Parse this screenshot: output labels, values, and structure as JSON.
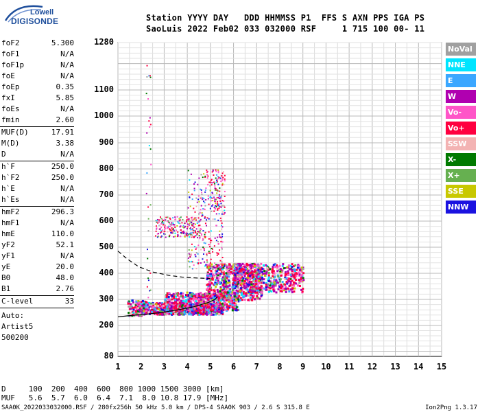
{
  "logo": {
    "line1": "Lowell",
    "line2": "DIGISONDE"
  },
  "header": {
    "line1": "Station YYYY DAY   DDD HHMMSS P1  FFS S AXN PPS IGA PS",
    "line2": "SaoLuis 2022 Feb02 033 032000 RSF     1 715 100 00- 11"
  },
  "params_group1": [
    {
      "label": "foF2",
      "value": "5.300"
    },
    {
      "label": "foF1",
      "value": "N/A"
    },
    {
      "label": "foF1p",
      "value": "N/A"
    },
    {
      "label": "foE",
      "value": "N/A"
    },
    {
      "label": "foEp",
      "value": "0.35"
    },
    {
      "label": "fxI",
      "value": "5.85"
    },
    {
      "label": "foEs",
      "value": "N/A"
    },
    {
      "label": "fmin",
      "value": "2.60"
    }
  ],
  "params_group2": [
    {
      "label": "MUF(D)",
      "value": "17.91"
    },
    {
      "label": "M(D)",
      "value": "3.38"
    },
    {
      "label": "D",
      "value": "N/A"
    }
  ],
  "params_group3": [
    {
      "label": "h`F",
      "value": "250.0"
    },
    {
      "label": "h`F2",
      "value": "250.0"
    },
    {
      "label": "h`E",
      "value": "N/A"
    },
    {
      "label": "h`Es",
      "value": "N/A"
    }
  ],
  "params_group4": [
    {
      "label": "hmF2",
      "value": "296.3"
    },
    {
      "label": "hmF1",
      "value": "N/A"
    },
    {
      "label": "hmE",
      "value": "110.0"
    },
    {
      "label": "yF2",
      "value": "52.1"
    },
    {
      "label": "yF1",
      "value": "N/A"
    },
    {
      "label": "yE",
      "value": "20.0"
    },
    {
      "label": "B0",
      "value": "48.0"
    },
    {
      "label": "B1",
      "value": "2.76"
    }
  ],
  "params_group5": [
    {
      "label": "C-level",
      "value": "33"
    }
  ],
  "autoscaling": [
    "Auto:",
    "Artist5",
    "500200"
  ],
  "axes": {
    "y_ticks": [
      80,
      200,
      300,
      400,
      500,
      600,
      700,
      800,
      900,
      1000,
      1100,
      1280
    ],
    "x_ticks": [
      1,
      2,
      3,
      4,
      5,
      6,
      7,
      8,
      9,
      10,
      11,
      12,
      13,
      14,
      15
    ]
  },
  "legend": [
    {
      "label": "NoVal",
      "color": "#a0a0a0"
    },
    {
      "label": "NNE",
      "color": "#00e5ff"
    },
    {
      "label": "E",
      "color": "#3ba7ff"
    },
    {
      "label": "W",
      "color": "#b000b0"
    },
    {
      "label": "Vo-",
      "color": "#ff55c8"
    },
    {
      "label": "Vo+",
      "color": "#ff0040"
    },
    {
      "label": "SSW",
      "color": "#f3b3b3"
    },
    {
      "label": "X-",
      "color": "#007a00"
    },
    {
      "label": "X+",
      "color": "#66b050"
    },
    {
      "label": "SSE",
      "color": "#c8c800"
    },
    {
      "label": "NNW",
      "color": "#1a12e0"
    }
  ],
  "d_table": {
    "line1": "D     100  200  400  600  800 1000 1500 3000 [km]",
    "line2": "MUF   5.6  5.7  6.0  6.4  7.1  8.0 10.8 17.9 [MHz]"
  },
  "footer": "SAA0K_2022033032000.RSF / 280fx256h 50 kHz 5.0 km / DPS-4 SAA0K 903 / 2.6 S 315.8 E",
  "version": "Ion2Png 1.3.17"
}
